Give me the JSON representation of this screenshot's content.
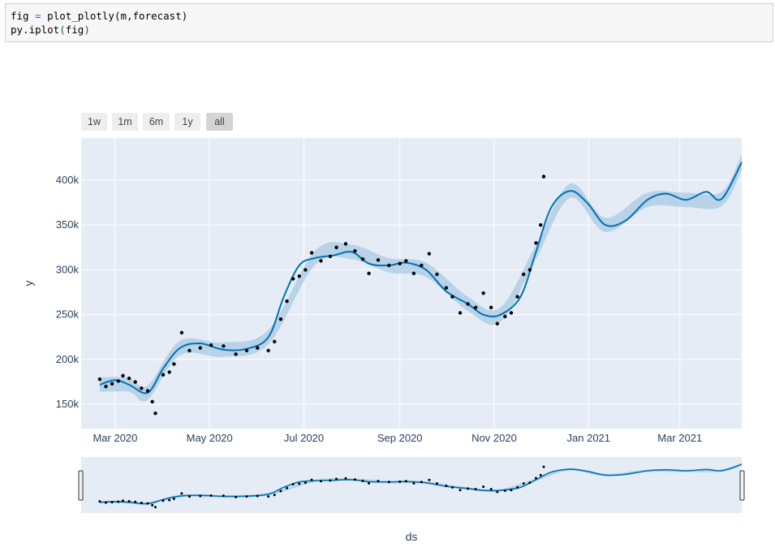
{
  "code": {
    "line1_var": "fig",
    "line1_op": "=",
    "line1_call": "plot_plotly(m,forecast)",
    "line2_call": "py.iplot",
    "line2_paren_open": "(",
    "line2_arg": "fig",
    "line2_paren_close": ")"
  },
  "range_selector": {
    "buttons": [
      "1w",
      "1m",
      "6m",
      "1y",
      "all"
    ],
    "active": "all"
  },
  "colors": {
    "plot_bg": "#e5ecf6",
    "trend_line": "#0072b2",
    "uncertainty_band": "#a8cbe3",
    "points": "#000000",
    "grid": "#ffffff"
  },
  "chart_data": {
    "type": "line",
    "xlabel": "ds",
    "ylabel": "y",
    "x_ticks": [
      "Mar 2020",
      "May 2020",
      "Jul 2020",
      "Sep 2020",
      "Nov 2020",
      "Jan 2021",
      "Mar 2021"
    ],
    "y_ticks": [
      "150k",
      "200k",
      "250k",
      "300k",
      "350k",
      "400k"
    ],
    "xlim": [
      "2020-02-08",
      "2021-04-10"
    ],
    "ylim": [
      123000,
      447000
    ],
    "series": [
      {
        "type": "line",
        "x": [
          "2020-02-20",
          "2020-03-01",
          "2020-03-10",
          "2020-03-22",
          "2020-04-01",
          "2020-04-12",
          "2020-04-25",
          "2020-05-10",
          "2020-05-25",
          "2020-06-08",
          "2020-06-18",
          "2020-06-28",
          "2020-07-08",
          "2020-07-20",
          "2020-08-01",
          "2020-08-12",
          "2020-08-25",
          "2020-09-05",
          "2020-09-18",
          "2020-10-01",
          "2020-10-15",
          "2020-10-25",
          "2020-11-05",
          "2020-11-18",
          "2020-11-28",
          "2020-12-08",
          "2020-12-20",
          "2020-12-31",
          "2021-01-12",
          "2021-01-25",
          "2021-02-08",
          "2021-02-20",
          "2021-03-05",
          "2021-03-18",
          "2021-03-28",
          "2021-04-10"
        ],
        "values": [
          172000,
          177000,
          172000,
          163000,
          190000,
          213000,
          218000,
          211000,
          212000,
          225000,
          270000,
          305000,
          313000,
          316000,
          320000,
          307000,
          305000,
          308000,
          300000,
          276000,
          262000,
          250000,
          250000,
          270000,
          320000,
          370000,
          388000,
          375000,
          350000,
          355000,
          378000,
          385000,
          378000,
          387000,
          379000,
          420000
        ]
      },
      {
        "type": "band",
        "x": [
          "2020-02-20",
          "2020-03-10",
          "2020-03-22",
          "2020-04-12",
          "2020-05-10",
          "2020-06-08",
          "2020-07-08",
          "2020-08-01",
          "2020-08-25",
          "2020-09-18",
          "2020-10-15",
          "2020-11-05",
          "2020-11-28",
          "2020-12-20",
          "2021-01-12",
          "2021-02-08",
          "2021-03-05",
          "2021-03-28",
          "2021-04-10"
        ],
        "lower": [
          164000,
          164000,
          155000,
          205000,
          203000,
          217000,
          305000,
          312000,
          297000,
          292000,
          254000,
          242000,
          312000,
          380000,
          342000,
          370000,
          370000,
          371000,
          411000
        ],
        "upper": [
          180000,
          180000,
          171000,
          221000,
          219000,
          233000,
          321000,
          328000,
          313000,
          308000,
          270000,
          258000,
          328000,
          396000,
          358000,
          386000,
          386000,
          387000,
          429000
        ]
      },
      {
        "type": "scatter",
        "x": [
          "2020-02-20",
          "2020-02-24",
          "2020-02-28",
          "2020-03-03",
          "2020-03-06",
          "2020-03-10",
          "2020-03-14",
          "2020-03-18",
          "2020-03-22",
          "2020-03-25",
          "2020-03-27",
          "2020-04-01",
          "2020-04-05",
          "2020-04-08",
          "2020-04-13",
          "2020-04-18",
          "2020-04-25",
          "2020-05-02",
          "2020-05-10",
          "2020-05-18",
          "2020-05-25",
          "2020-06-01",
          "2020-06-08",
          "2020-06-12",
          "2020-06-16",
          "2020-06-20",
          "2020-06-24",
          "2020-06-28",
          "2020-07-02",
          "2020-07-06",
          "2020-07-12",
          "2020-07-18",
          "2020-07-22",
          "2020-07-28",
          "2020-08-03",
          "2020-08-08",
          "2020-08-12",
          "2020-08-18",
          "2020-08-25",
          "2020-09-01",
          "2020-09-05",
          "2020-09-10",
          "2020-09-15",
          "2020-09-20",
          "2020-09-25",
          "2020-10-01",
          "2020-10-05",
          "2020-10-10",
          "2020-10-15",
          "2020-10-20",
          "2020-10-25",
          "2020-10-30",
          "2020-11-03",
          "2020-11-08",
          "2020-11-12",
          "2020-11-16",
          "2020-11-20",
          "2020-11-24",
          "2020-11-28",
          "2020-12-01",
          "2020-12-03"
        ],
        "values": [
          178000,
          170000,
          173000,
          176000,
          182000,
          179000,
          175000,
          168000,
          165000,
          153000,
          140000,
          183000,
          186000,
          195000,
          230000,
          210000,
          213000,
          216000,
          215000,
          206000,
          210000,
          213000,
          210000,
          220000,
          245000,
          265000,
          290000,
          293000,
          300000,
          319000,
          310000,
          315000,
          325000,
          329000,
          321000,
          312000,
          296000,
          311000,
          305000,
          307000,
          310000,
          296000,
          305000,
          318000,
          295000,
          280000,
          270000,
          252000,
          262000,
          258000,
          274000,
          258000,
          240000,
          248000,
          252000,
          270000,
          295000,
          300000,
          330000,
          350000,
          404000
        ]
      }
    ]
  },
  "range_slider": {
    "handles": [
      "left-handle",
      "right-handle"
    ]
  }
}
